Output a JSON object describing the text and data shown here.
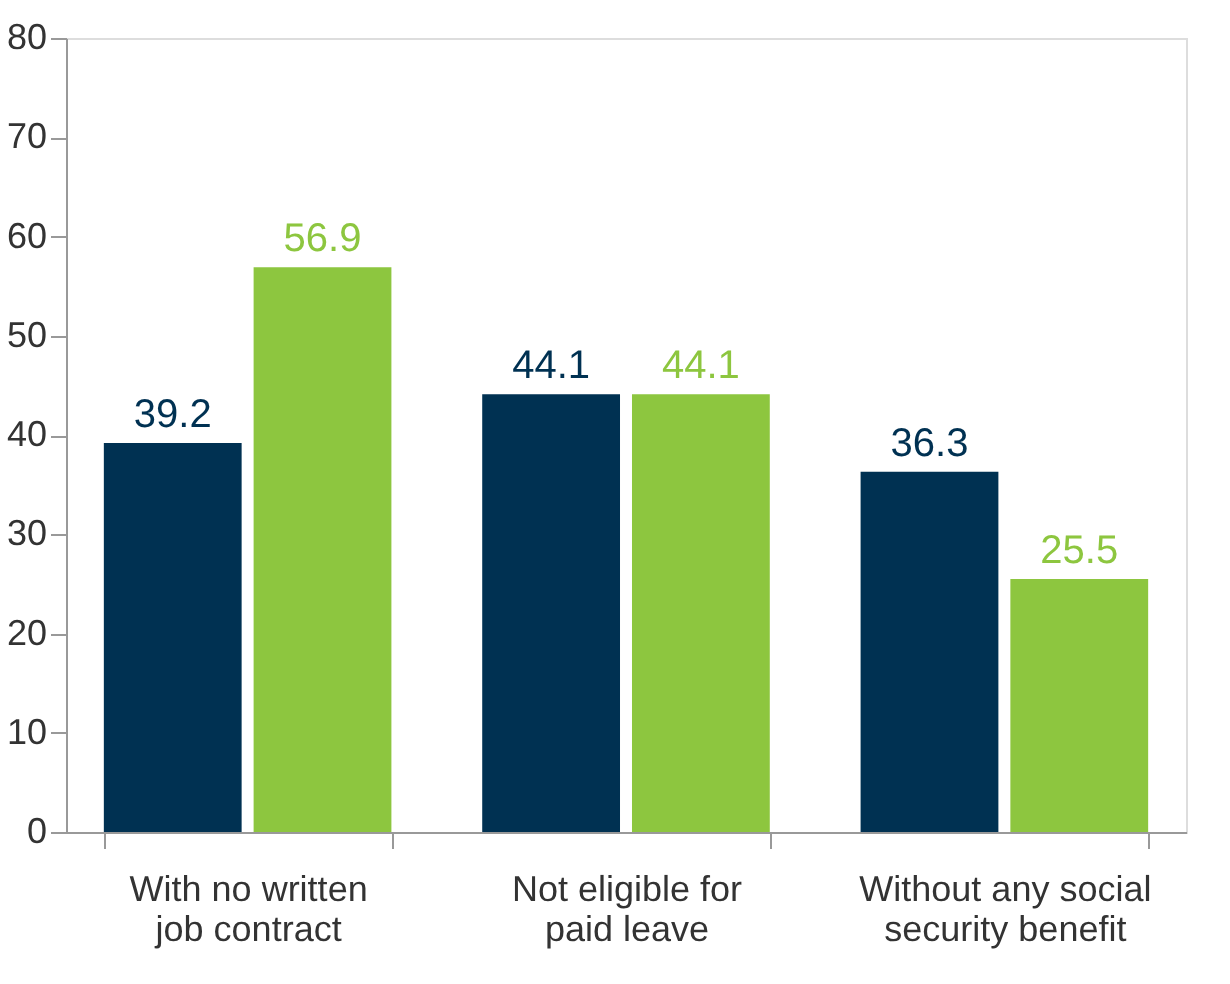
{
  "chart_data": {
    "type": "bar",
    "categories": [
      "With no written job contract",
      "Not eligible for paid leave",
      "Without any social security benefit"
    ],
    "series": [
      {
        "color": "#003152",
        "values": [
          39.2,
          44.1,
          36.3
        ]
      },
      {
        "color": "#8dc63f",
        "values": [
          56.9,
          44.1,
          25.5
        ]
      }
    ],
    "ylim": [
      0,
      80
    ],
    "yticks": [
      0,
      10,
      20,
      30,
      40,
      50,
      60,
      70,
      80
    ],
    "data_labels": true,
    "grid": false,
    "legend": false
  }
}
